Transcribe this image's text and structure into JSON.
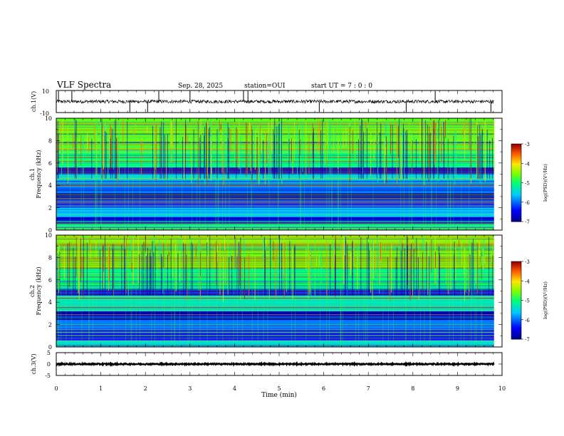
{
  "header": {
    "title": "VLF Spectra",
    "date": "Sep. 28, 2025",
    "station": "station=OUI",
    "start_ut": "start UT =  7 : 0  : 0"
  },
  "chart_data": [
    {
      "type": "line",
      "panel": "ch1-waveform",
      "ylabel": "ch.1(V)",
      "ylim": [
        -10,
        10
      ],
      "yticks": [
        "10",
        "-10"
      ],
      "xlim": [
        0,
        10
      ],
      "baseline": 0,
      "description_values": {
        "noise_amplitude": 1.5,
        "spikes_at_min": [
          0.05,
          0.35,
          1.65,
          2.05,
          2.3,
          3.0,
          4.2,
          4.3,
          5.9,
          7.85,
          8.5,
          9.75
        ]
      }
    },
    {
      "type": "heatmap",
      "panel": "ch1-spectrogram",
      "ylabel": "ch.1\nFrequency (kHz)",
      "ylabel_line1": "ch.1",
      "ylabel_line2": "Frequency (kHz)",
      "ylim": [
        0,
        10
      ],
      "yticks": [
        "0",
        "2",
        "4",
        "6",
        "8",
        "10"
      ],
      "xlim": [
        0,
        10
      ],
      "colorbar": {
        "label": "log(PSD)(V²/Hz)",
        "ticks": [
          "-3",
          "-4",
          "-5",
          "-6",
          "-7"
        ],
        "range": [
          -7,
          -3
        ]
      },
      "bands_khz": [
        {
          "from": 0,
          "to": 0.6,
          "level": -5.2
        },
        {
          "from": 0.6,
          "to": 1.2,
          "level": -6.6
        },
        {
          "from": 1.2,
          "to": 2.0,
          "level": -5.6
        },
        {
          "from": 2.0,
          "to": 2.8,
          "level": -6.2
        },
        {
          "from": 2.8,
          "to": 3.3,
          "level": -6.9
        },
        {
          "from": 3.3,
          "to": 4.4,
          "level": -5.9
        },
        {
          "from": 4.4,
          "to": 5.0,
          "level": -5.4
        },
        {
          "from": 5.0,
          "to": 5.6,
          "level": -6.7
        },
        {
          "from": 5.6,
          "to": 7.0,
          "level": -5.0
        },
        {
          "from": 7.0,
          "to": 10.0,
          "level": -4.6
        }
      ]
    },
    {
      "type": "heatmap",
      "panel": "ch2-spectrogram",
      "ylabel": "ch.2\nFrequency (kHz)",
      "ylabel_line1": "ch.2",
      "ylabel_line2": "Frequency (kHz)",
      "ylim": [
        0,
        10
      ],
      "yticks": [
        "0",
        "2",
        "4",
        "6",
        "8",
        "10"
      ],
      "xlim": [
        0,
        10
      ],
      "colorbar": {
        "label": "log(PSD)(V²/Hz)",
        "ticks": [
          "-3",
          "-4",
          "-5",
          "-6",
          "-7"
        ],
        "range": [
          -7,
          -3
        ]
      },
      "bands_khz": [
        {
          "from": 0,
          "to": 0.6,
          "level": -5.4
        },
        {
          "from": 0.6,
          "to": 1.5,
          "level": -6.4
        },
        {
          "from": 1.5,
          "to": 2.4,
          "level": -5.9
        },
        {
          "from": 2.4,
          "to": 3.2,
          "level": -6.7
        },
        {
          "from": 3.2,
          "to": 4.6,
          "level": -5.3
        },
        {
          "from": 4.6,
          "to": 5.2,
          "level": -6.6
        },
        {
          "from": 5.2,
          "to": 7.0,
          "level": -5.0
        },
        {
          "from": 7.0,
          "to": 10.0,
          "level": -4.5
        }
      ]
    },
    {
      "type": "line",
      "panel": "ch3-waveform",
      "ylabel": "ch.3(V)",
      "ylim": [
        -5,
        5
      ],
      "yticks": [
        "5",
        "0",
        "-5"
      ],
      "xlim": [
        0,
        10
      ],
      "baseline": 0,
      "description_values": {
        "noise_amplitude": 0.25
      }
    }
  ],
  "x_axis": {
    "label": "Time (min)",
    "ticks": [
      "0",
      "1",
      "2",
      "3",
      "4",
      "5",
      "6",
      "7",
      "8",
      "9",
      "10"
    ],
    "data_end": 9.82
  }
}
